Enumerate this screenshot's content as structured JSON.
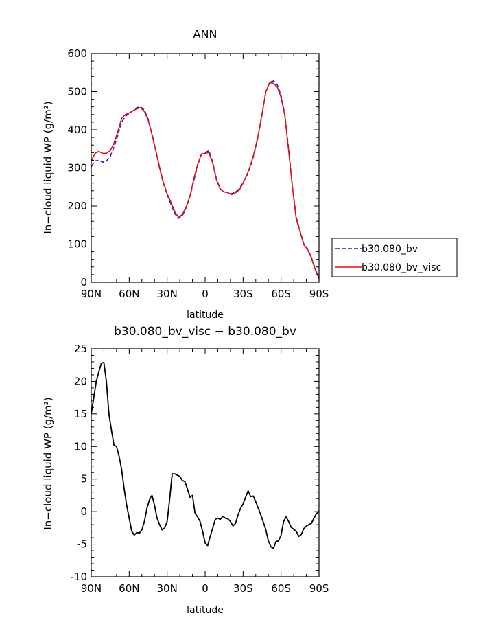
{
  "chart_data": [
    {
      "type": "line",
      "title": "ANN",
      "xlabel": "latitude",
      "ylabel": "In−cloud liquid WP (g/m²)",
      "xlim": [
        90,
        -90
      ],
      "ylim": [
        0,
        600
      ],
      "x_ticks": [
        {
          "value": 90,
          "label": "90N"
        },
        {
          "value": 60,
          "label": "60N"
        },
        {
          "value": 30,
          "label": "30N"
        },
        {
          "value": 0,
          "label": "0"
        },
        {
          "value": -30,
          "label": "30S"
        },
        {
          "value": -60,
          "label": "60S"
        },
        {
          "value": -90,
          "label": "90S"
        }
      ],
      "y_ticks": [
        0,
        100,
        200,
        300,
        400,
        500,
        600
      ],
      "legend": "outside-right",
      "x": [
        90,
        87,
        84,
        81,
        78,
        75,
        72,
        69,
        66,
        63,
        60,
        57,
        54,
        51,
        48,
        45,
        42,
        39,
        36,
        33,
        30,
        27,
        24,
        21,
        18,
        15,
        12,
        9,
        6,
        3,
        0,
        -3,
        -6,
        -9,
        -12,
        -15,
        -18,
        -21,
        -24,
        -27,
        -30,
        -33,
        -36,
        -39,
        -42,
        -45,
        -48,
        -51,
        -54,
        -57,
        -60,
        -63,
        -66,
        -69,
        -72,
        -75,
        -78,
        -81,
        -84,
        -87,
        -90
      ],
      "series": [
        {
          "name": "b30.080_bv",
          "color": "#1a1acc",
          "dash": "dashed",
          "values": [
            303,
            318,
            320,
            315,
            318,
            330,
            355,
            385,
            420,
            435,
            443,
            450,
            458,
            460,
            452,
            428,
            390,
            345,
            300,
            260,
            230,
            205,
            180,
            168,
            175,
            195,
            225,
            265,
            305,
            335,
            340,
            345,
            315,
            270,
            245,
            237,
            236,
            232,
            237,
            245,
            262,
            280,
            305,
            340,
            385,
            440,
            500,
            525,
            528,
            518,
            490,
            440,
            350,
            250,
            170,
            135,
            100,
            88,
            65,
            35,
            10
          ]
        },
        {
          "name": "b30.080_bv_visc",
          "color": "#e01010",
          "dash": "solid",
          "values": [
            318,
            338,
            343,
            338,
            338,
            345,
            365,
            395,
            430,
            440,
            444,
            450,
            455,
            458,
            448,
            425,
            388,
            345,
            302,
            262,
            232,
            210,
            185,
            170,
            178,
            197,
            226,
            270,
            308,
            336,
            338,
            340,
            312,
            268,
            244,
            237,
            235,
            230,
            235,
            242,
            260,
            282,
            308,
            343,
            388,
            442,
            500,
            523,
            522,
            512,
            485,
            436,
            345,
            248,
            165,
            133,
            98,
            86,
            63,
            33,
            10
          ]
        }
      ]
    },
    {
      "type": "line",
      "title": "b30.080_bv_visc − b30.080_bv",
      "xlabel": "latitude",
      "ylabel": "In−cloud liquid WP (g/m²)",
      "xlim": [
        90,
        -90
      ],
      "ylim": [
        -10,
        25
      ],
      "x_ticks": [
        {
          "value": 90,
          "label": "90N"
        },
        {
          "value": 60,
          "label": "60N"
        },
        {
          "value": 30,
          "label": "30N"
        },
        {
          "value": 0,
          "label": "0"
        },
        {
          "value": -30,
          "label": "30S"
        },
        {
          "value": -60,
          "label": "60S"
        },
        {
          "value": -90,
          "label": "90S"
        }
      ],
      "y_ticks": [
        -10,
        -5,
        0,
        5,
        10,
        15,
        20,
        25
      ],
      "x": [
        90,
        88,
        86,
        84,
        82,
        80,
        78,
        76,
        74,
        72,
        70,
        68,
        66,
        64,
        62,
        60,
        58,
        56,
        54,
        52,
        50,
        48,
        46,
        44,
        42,
        40,
        38,
        36,
        34,
        32,
        30,
        28,
        26,
        24,
        22,
        20,
        18,
        16,
        14,
        12,
        10,
        8,
        6,
        4,
        2,
        0,
        -2,
        -4,
        -6,
        -8,
        -10,
        -12,
        -14,
        -16,
        -18,
        -20,
        -22,
        -24,
        -26,
        -28,
        -30,
        -32,
        -34,
        -36,
        -38,
        -40,
        -42,
        -44,
        -46,
        -48,
        -50,
        -52,
        -54,
        -56,
        -58,
        -60,
        -62,
        -64,
        -66,
        -68,
        -70,
        -72,
        -74,
        -76,
        -78,
        -80,
        -82,
        -84,
        -86,
        -88,
        -90
      ],
      "series": [
        {
          "name": "",
          "color": "#000000",
          "dash": "solid",
          "values": [
            15,
            17.5,
            20,
            21.5,
            22.8,
            22.9,
            20,
            15,
            12.5,
            10.2,
            10,
            8.5,
            6.5,
            3.5,
            1,
            -1,
            -3,
            -3.6,
            -3.2,
            -3.3,
            -2.8,
            -1.5,
            0.5,
            1.8,
            2.5,
            1,
            -1,
            -2,
            -2.8,
            -2.5,
            -1.5,
            2,
            5.8,
            5.8,
            5.6,
            5.4,
            4.8,
            4.6,
            3.5,
            2.2,
            2.5,
            -0.2,
            -0.8,
            -1.5,
            -3,
            -4.8,
            -5.2,
            -3.8,
            -2.5,
            -1.2,
            -1.0,
            -1.2,
            -0.7,
            -1.0,
            -1.1,
            -1.5,
            -2.2,
            -1.8,
            -0.5,
            0.5,
            1.2,
            2.2,
            3.2,
            2.3,
            2.4,
            1.5,
            0.5,
            -0.5,
            -1.6,
            -2.8,
            -4.5,
            -5.4,
            -5.6,
            -4.6,
            -4.5,
            -3.6,
            -1.5,
            -0.8,
            -1.5,
            -2.4,
            -2.7,
            -3,
            -3.8,
            -3.5,
            -2.6,
            -2.2,
            -2.0,
            -1.8,
            -1.0,
            -0.3,
            0.1
          ]
        }
      ]
    }
  ]
}
